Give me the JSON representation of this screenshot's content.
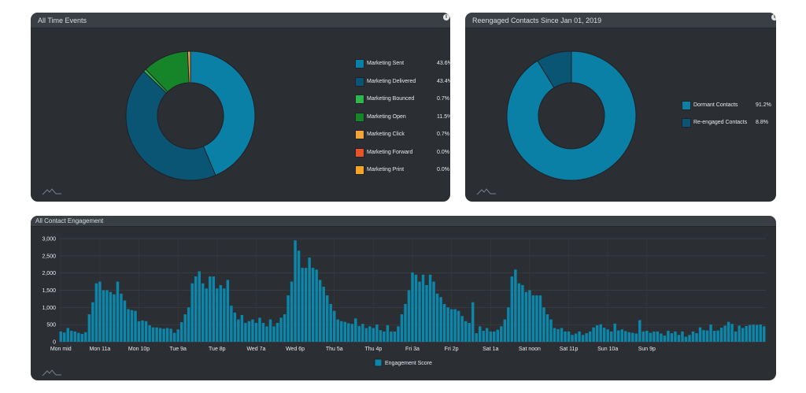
{
  "panels": {
    "all_time_events": {
      "title": "All Time Events"
    },
    "reengaged": {
      "title": "Reengaged Contacts Since Jan 01, 2019"
    },
    "engagement": {
      "title": "All Contact Engagement"
    }
  },
  "icons": {
    "info": "info-icon",
    "logo": "logo-mark-icon"
  },
  "chart_data": [
    {
      "type": "pie",
      "donut": true,
      "title": "All Time Events",
      "slices": [
        {
          "label": "Marketing Sent",
          "value": 43.6,
          "display": "43.6%",
          "color": "#0b80a6"
        },
        {
          "label": "Marketing Delivered",
          "value": 43.4,
          "display": "43.4%",
          "color": "#0a5574"
        },
        {
          "label": "Marketing Bounced",
          "value": 0.7,
          "display": "0.7%",
          "color": "#2db84d"
        },
        {
          "label": "Marketing Open",
          "value": 11.5,
          "display": "11.5%",
          "color": "#168428"
        },
        {
          "label": "Marketing Click",
          "value": 0.7,
          "display": "0.7%",
          "color": "#f2a33a"
        },
        {
          "label": "Marketing Forward",
          "value": 0.0,
          "display": "0.0%",
          "color": "#e8532a"
        },
        {
          "label": "Marketing Print",
          "value": 0.0,
          "display": "0.0%",
          "color": "#f5a623"
        }
      ],
      "legend_position": "right"
    },
    {
      "type": "pie",
      "donut": true,
      "title": "Reengaged Contacts Since Jan 01, 2019",
      "slices": [
        {
          "label": "Dormant Contacts",
          "value": 91.2,
          "display": "91.2%",
          "color": "#0b80a6"
        },
        {
          "label": "Re-engaged Contacts",
          "value": 8.8,
          "display": "8.8%",
          "color": "#0a5574"
        }
      ],
      "legend_position": "right"
    },
    {
      "type": "bar",
      "title": "All Contact Engagement",
      "series": [
        {
          "name": "Engagement Score",
          "color": "#0b87ac",
          "values": [
            300,
            270,
            400,
            320,
            300,
            260,
            230,
            280,
            800,
            1150,
            1700,
            1750,
            1500,
            1500,
            1450,
            1380,
            1750,
            1400,
            1200,
            950,
            920,
            900,
            600,
            620,
            600,
            480,
            420,
            420,
            400,
            380,
            400,
            380,
            260,
            360,
            570,
            800,
            1000,
            1700,
            1900,
            2050,
            1700,
            1550,
            1900,
            1900,
            1550,
            1650,
            1550,
            1800,
            1050,
            850,
            650,
            780,
            550,
            600,
            650,
            550,
            700,
            550,
            450,
            650,
            450,
            550,
            700,
            800,
            1350,
            1750,
            2950,
            2650,
            2150,
            2150,
            2450,
            2150,
            2100,
            1800,
            1600,
            1350,
            1100,
            900,
            650,
            600,
            580,
            540,
            520,
            680,
            460,
            520,
            400,
            450,
            400,
            500,
            340,
            300,
            480,
            300,
            300,
            450,
            800,
            1100,
            1500,
            2020,
            1950,
            1750,
            1950,
            1650,
            1950,
            1750,
            1400,
            1300,
            1100,
            1000,
            950,
            950,
            900,
            750,
            600,
            550,
            1150,
            250,
            450,
            320,
            400,
            300,
            300,
            350,
            450,
            650,
            1000,
            1900,
            2100,
            1700,
            1650,
            1450,
            1500,
            1350,
            1350,
            1350,
            1000,
            800,
            650,
            400,
            370,
            400,
            300,
            300,
            200,
            240,
            300,
            200,
            250,
            300,
            420,
            480,
            510,
            410,
            360,
            300,
            530,
            330,
            360,
            310,
            280,
            260,
            240,
            630,
            300,
            320,
            260,
            300,
            300,
            240,
            180,
            320,
            250,
            300,
            200,
            300,
            150,
            200,
            300,
            250,
            420,
            340,
            330,
            500,
            320,
            330,
            410,
            470,
            580,
            520,
            300,
            470,
            400,
            460,
            490,
            500,
            490,
            500,
            450
          ]
        }
      ],
      "ylim": [
        0,
        3000
      ],
      "yticks": [
        "0",
        "500",
        "1,000",
        "1,500",
        "2,000",
        "2,500",
        "3,000"
      ],
      "ytick_values": [
        0,
        500,
        1000,
        1500,
        2000,
        2500,
        3000
      ],
      "xtick_labels": [
        "Mon mid",
        "Mon 11a",
        "Mon 10p",
        "Tue 9a",
        "Tue 8p",
        "Wed 7a",
        "Wed 6p",
        "Thu 5a",
        "Thu 4p",
        "Fri 3a",
        "Fri 2p",
        "Sat 1a",
        "Sat noon",
        "Sat 11p",
        "Sun 10a",
        "Sun 9p"
      ],
      "xtick_index": [
        0,
        11,
        22,
        33,
        44,
        55,
        66,
        77,
        88,
        99,
        110,
        121,
        132,
        143,
        154,
        165
      ],
      "grid": true,
      "legend_position": "bottom"
    }
  ]
}
